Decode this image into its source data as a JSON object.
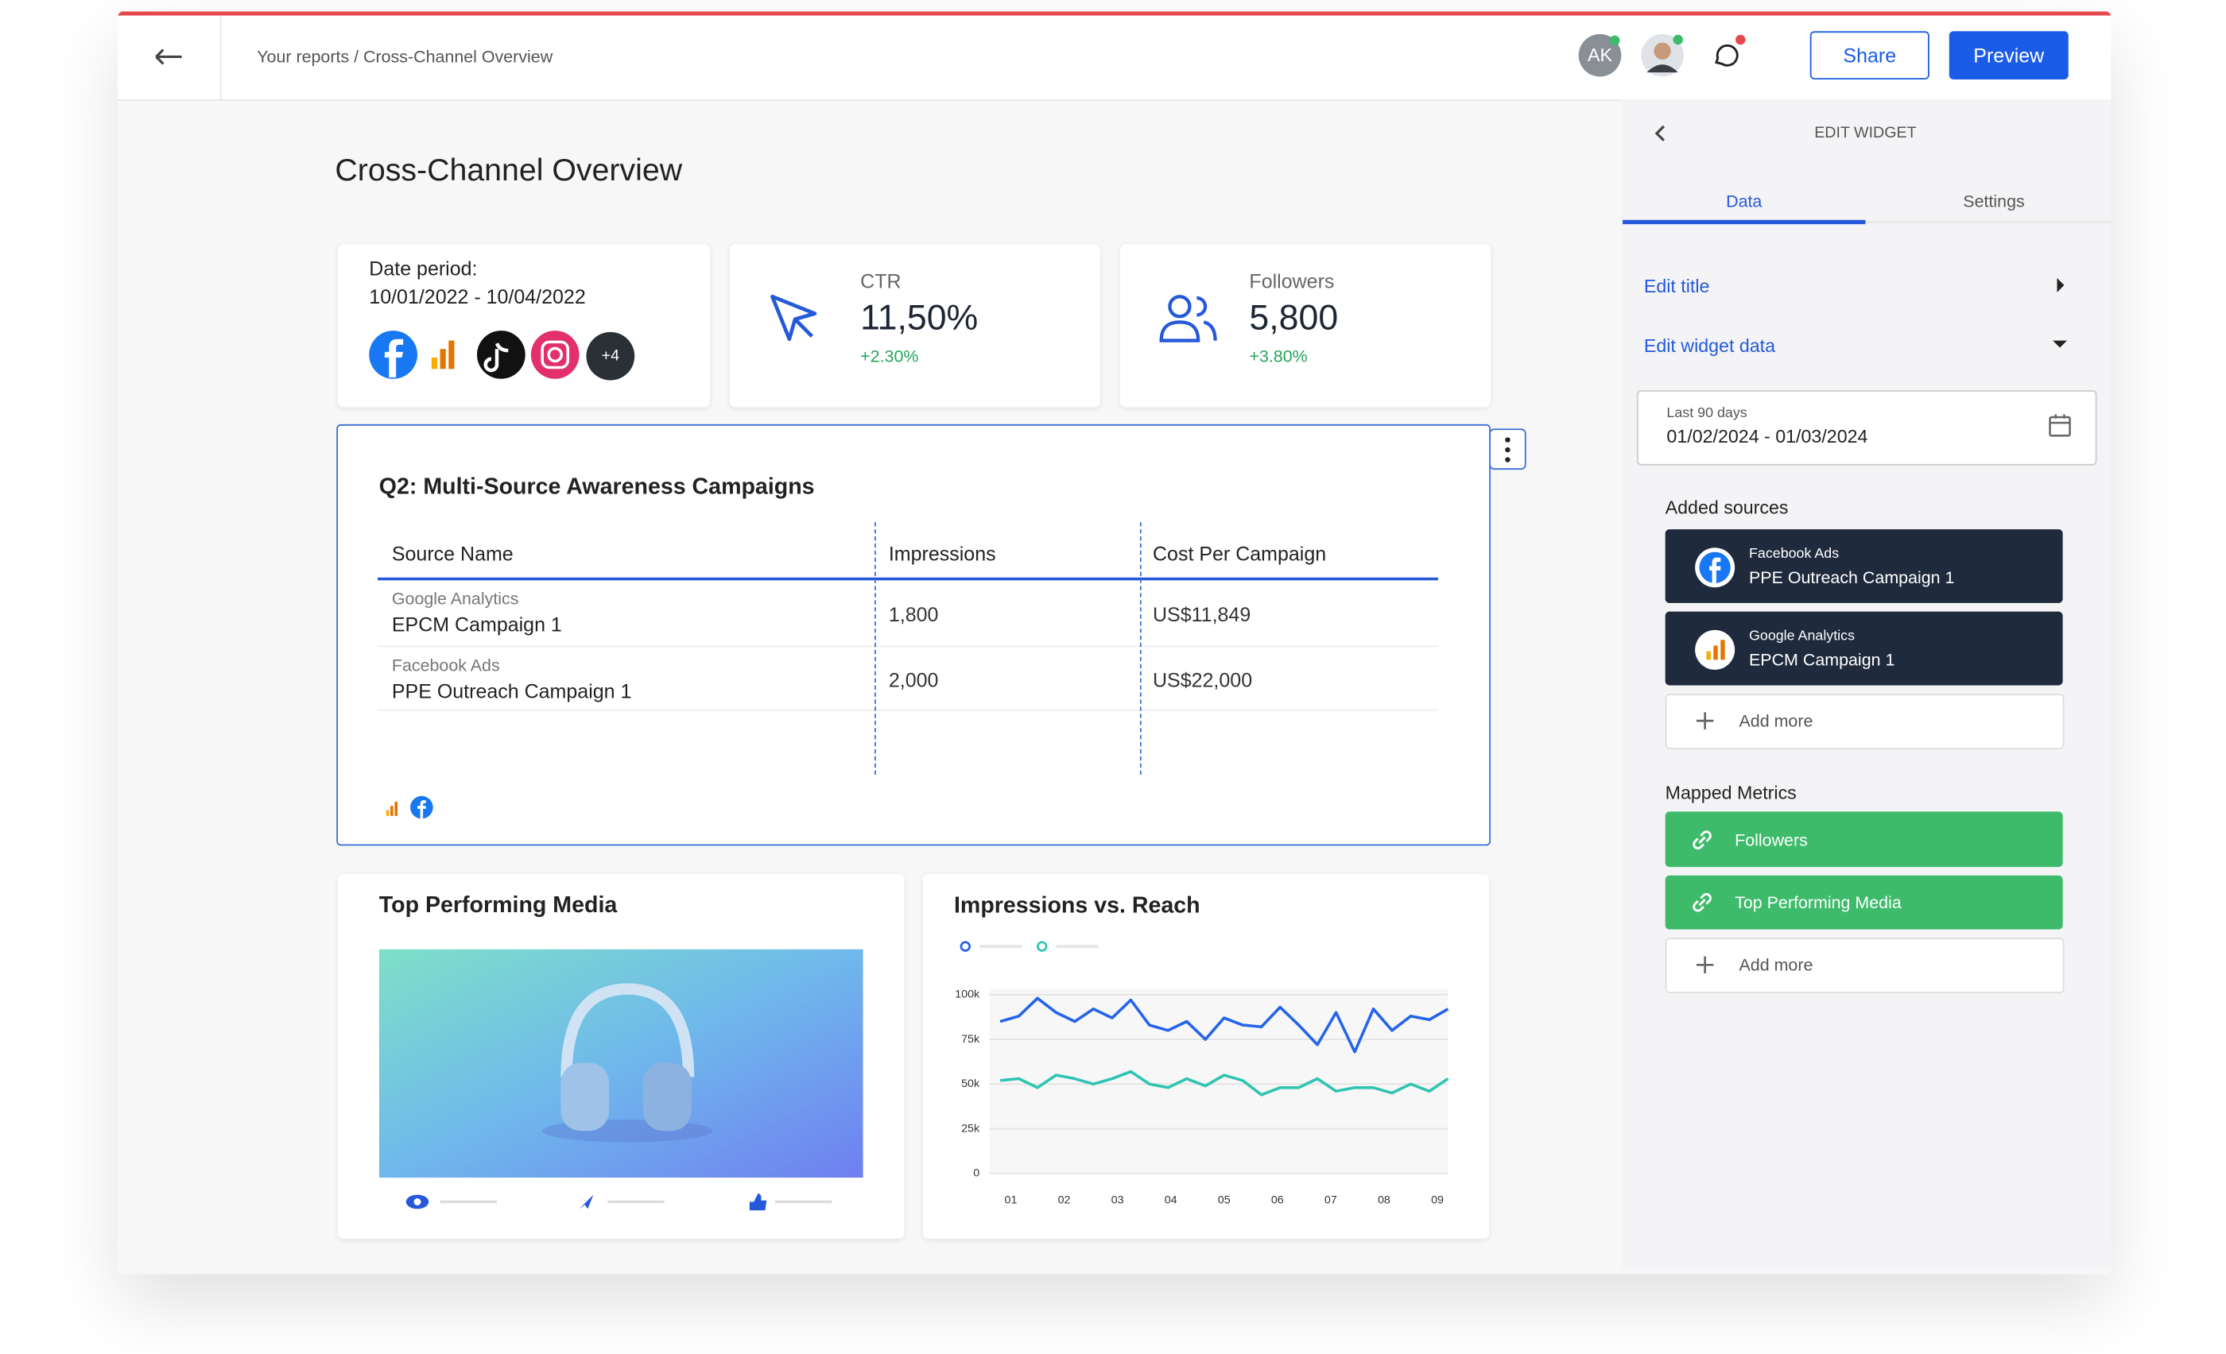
{
  "topbar": {
    "breadcrumb": "Your reports / Cross-Channel Overview",
    "avatar_initials": "AK",
    "share": "Share",
    "preview": "Preview"
  },
  "report": {
    "title": "Cross-Channel Overview",
    "date_card": {
      "label": "Date period:",
      "range": "10/01/2022 - 10/04/2022",
      "more_sources": "+4"
    },
    "kpis": [
      {
        "label": "CTR",
        "value": "11,50%",
        "change": "+2.30%"
      },
      {
        "label": "Followers",
        "value": "5,800",
        "change": "+3.80%"
      }
    ],
    "table_widget": {
      "title": "Q2: Multi-Source Awareness Campaigns",
      "columns": [
        "Source Name",
        "Impressions",
        "Cost Per Campaign"
      ],
      "rows": [
        {
          "source": "Google Analytics",
          "campaign": "EPCM Campaign 1",
          "impressions": "1,800",
          "cost": "US$11,849"
        },
        {
          "source": "Facebook Ads",
          "campaign": "PPE Outreach Campaign 1",
          "impressions": "2,000",
          "cost": "US$22,000"
        }
      ]
    },
    "media_widget": {
      "title": "Top Performing Media"
    }
  },
  "chart_data": {
    "type": "line",
    "title": "Impressions vs. Reach",
    "x": [
      0.8,
      1.15,
      1.5,
      1.85,
      2.2,
      2.55,
      2.9,
      3.25,
      3.6,
      3.95,
      4.3,
      4.65,
      5.0,
      5.35,
      5.7,
      6.05,
      6.4,
      6.75,
      7.1,
      7.45,
      7.8,
      8.15,
      8.5,
      8.85,
      9.2
    ],
    "xlim": [
      0.6,
      9.2
    ],
    "xticks": [
      {
        "value": 1,
        "label": "01"
      },
      {
        "value": 2,
        "label": "02"
      },
      {
        "value": 3,
        "label": "03"
      },
      {
        "value": 4,
        "label": "04"
      },
      {
        "value": 5,
        "label": "05"
      },
      {
        "value": 6,
        "label": "06"
      },
      {
        "value": 7,
        "label": "07"
      },
      {
        "value": 8,
        "label": "08"
      },
      {
        "value": 9,
        "label": "09"
      }
    ],
    "ylim": [
      0,
      100000
    ],
    "yticks": [
      0,
      {
        "value": 25000,
        "label": "25k"
      },
      {
        "value": 50000,
        "label": "50k"
      },
      {
        "value": 75000,
        "label": "75k"
      },
      {
        "value": 100000,
        "label": "100k"
      }
    ],
    "grid": true,
    "series": [
      {
        "color": "#2563eb",
        "values": [
          85000,
          88000,
          98000,
          90000,
          85000,
          92000,
          87000,
          97000,
          83000,
          80000,
          85000,
          75000,
          87000,
          83000,
          82000,
          93000,
          83000,
          72000,
          90000,
          68000,
          92000,
          80000,
          88000,
          86000,
          92000
        ]
      },
      {
        "color": "#2fc4b2",
        "values": [
          52000,
          53000,
          48000,
          55000,
          53000,
          50000,
          53000,
          57000,
          50000,
          48000,
          53000,
          49000,
          55000,
          52000,
          44000,
          48000,
          48000,
          53000,
          46000,
          48000,
          48000,
          45000,
          50000,
          46000,
          53000
        ]
      }
    ]
  },
  "sidebar": {
    "heading": "EDIT WIDGET",
    "tabs": [
      "Data",
      "Settings"
    ],
    "edit_title": "Edit title",
    "edit_widget_data": "Edit widget data",
    "date_box": {
      "label": "Last 90 days",
      "range": "01/02/2024 - 01/03/2024"
    },
    "added_sources_title": "Added sources",
    "sources": [
      {
        "platform": "Facebook Ads",
        "campaign": "PPE Outreach Campaign 1"
      },
      {
        "platform": "Google Analytics",
        "campaign": "EPCM Campaign 1"
      }
    ],
    "add_more": "Add more",
    "mapped_metrics_title": "Mapped Metrics",
    "metrics": [
      "Followers",
      "Top Performing Media"
    ]
  }
}
